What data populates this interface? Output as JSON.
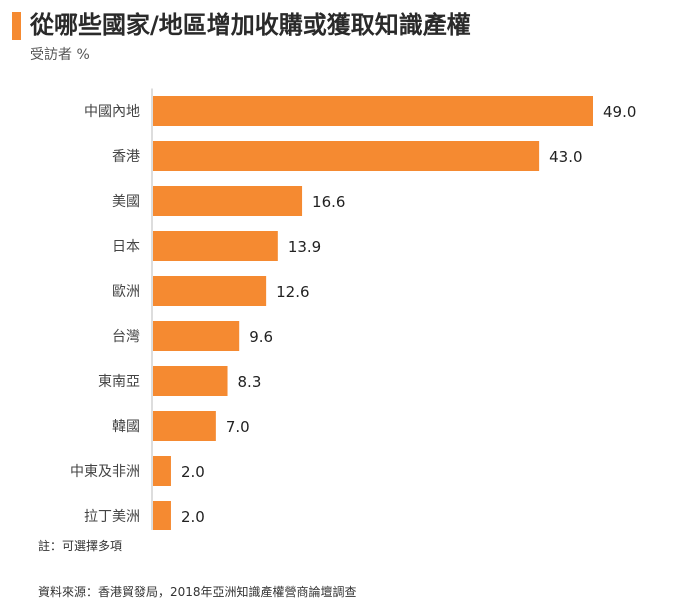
{
  "title": "從哪些國家/地區增加收購或獲取知識產權",
  "subtitle": "受訪者 %",
  "note": "註：可選擇多項",
  "source": "資料來源：香港貿發局，2018年亞洲知識產權營商論壇調查",
  "colors": {
    "bar": "#f58a31",
    "accent": "#f58a31",
    "axis": "#bbbbbb",
    "text": "#222222"
  },
  "chart_data": {
    "type": "bar",
    "orientation": "horizontal",
    "categories": [
      "中國內地",
      "香港",
      "美國",
      "日本",
      "歐洲",
      "台灣",
      "東南亞",
      "韓國",
      "中東及非洲",
      "拉丁美洲"
    ],
    "values": [
      49.0,
      43.0,
      16.6,
      13.9,
      12.6,
      9.6,
      8.3,
      7.0,
      2.0,
      2.0
    ],
    "value_labels": [
      "49.0",
      "43.0",
      "16.6",
      "13.9",
      "12.6",
      "9.6",
      "8.3",
      "7.0",
      "2.0",
      "2.0"
    ],
    "xlim": [
      0,
      49.0
    ],
    "grid": false,
    "legend": "none",
    "data_labels": "outside-end"
  }
}
